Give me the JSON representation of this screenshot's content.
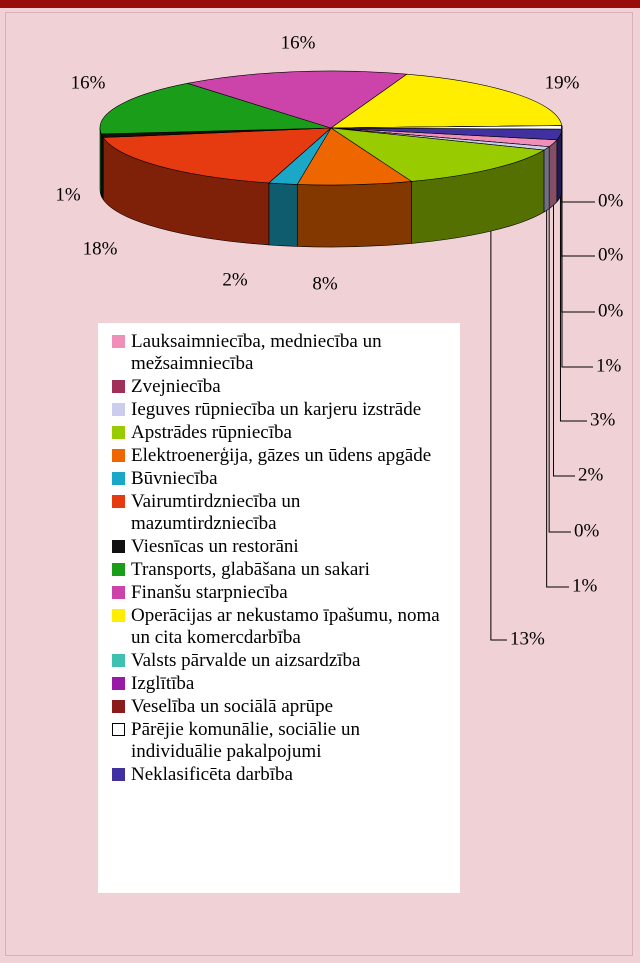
{
  "chart_data": {
    "type": "pie3d",
    "categories": [
      "Lauksaimniecība, medniecība un mežsaimniecība",
      "Zvejniecība",
      "Ieguves rūpniecība un karjeru izstrāde",
      "Apstrādes rūpniecība",
      "Elektroenerģija, gāzes un ūdens apgāde",
      "Būvniecība",
      "Vairumtirdzniecība un mazumtirdzniecība",
      "Viesnīcas un restorāni",
      "Transports, glabāšana un sakari",
      "Finanšu starpniecība",
      "Operācijas ar nekustamo īpašumu, noma un cita komercdarbība",
      "Valsts pārvalde un aizsardzība",
      "Izglītība",
      "Veselība un sociālā aprūpe",
      "Pārējie komunālie, sociālie un individuālie pakalpojumi",
      "Neklasificēta darbība"
    ],
    "values": [
      2,
      0,
      1,
      13,
      8,
      2,
      18,
      1,
      16,
      16,
      19,
      0,
      0,
      0,
      1,
      3
    ],
    "value_labels": [
      "2%",
      "0%",
      "1%",
      "13%",
      "8%",
      "2%",
      "18%",
      "1%",
      "16%",
      "16%",
      "19%",
      "0%",
      "0%",
      "0%",
      "1%",
      "3%"
    ],
    "colors": [
      "#f090b8",
      "#a0305a",
      "#ccccee",
      "#99cc00",
      "#ee6600",
      "#1ba8c8",
      "#e63a10",
      "#111111",
      "#1a9e1a",
      "#cc44aa",
      "#ffee00",
      "#40c0b0",
      "#9a1aa8",
      "#8b1a1a",
      "#ffffff",
      "#4030a0"
    ],
    "legend": true
  }
}
